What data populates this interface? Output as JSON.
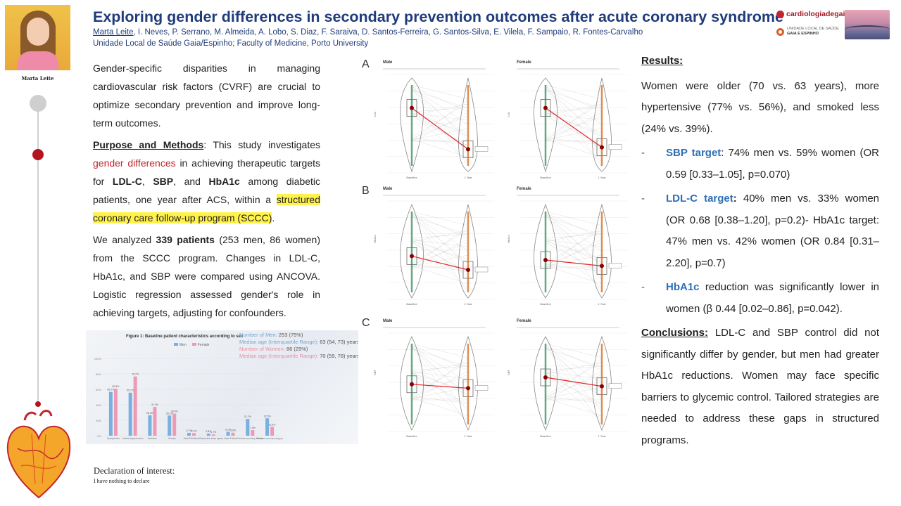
{
  "author_photo": {
    "name_caption": "Marta Leite"
  },
  "header": {
    "title": "Exploring gender differences in secondary prevention outcomes after acute coronary syndrome",
    "first_author": "Marta Leite",
    "coauthors": ", I. Neves, P. Serrano, M. Almeida, A. Lobo, S. Diaz, F. Saraiva, D. Santos-Ferreira, G. Santos-Silva, E. Vilela, F. Sampaio, R. Fontes-Carvalho",
    "affiliation": "Unidade Local de Saúde Gaia/Espinho; Faculty of Medicine, Porto University",
    "logo1": "cardiologiadegaia",
    "logo2_line1": "UNIDADE LOCAL DE SAÚDE",
    "logo2_line2": "GAIA E ESPINHO"
  },
  "intro": {
    "p1": "Gender-specific disparities in managing cardiovascular risk factors (CVRF) are crucial to optimize secondary prevention and improve long-term outcomes.",
    "pm_label": "Purpose and Methods",
    "pm_t1": ": This study investigates ",
    "pm_red": "gender differences",
    "pm_t2": " in achieving therapeutic targets for ",
    "ldl": "LDL-C",
    "sep1": ", ",
    "sbp": "SBP",
    "sep2": ", and ",
    "hba1c": "HbA1c",
    "pm_t3": " among diabetic patients, one year after ACS, within a ",
    "pm_hl": "structured coronary care follow-up program (SCCC)",
    "pm_end": ".",
    "an_t1": "We analyzed ",
    "an_bold": "339 patients",
    "an_t2": " (253 men, 86 women) from the SCCC program. Changes in LDL-C, HbA1c, and SBP were compared using ANCOVA. Logistic regression assessed gender's role in achieving targets, adjusting for confounders."
  },
  "figure1": {
    "title": "Figure 1: Baseline patient characteristics according to sex",
    "legend_men": "Men",
    "legend_women": "Female",
    "men_label": "Number of Men:",
    "men_value": " 253 (75%)",
    "men_age_label": "Median age (Interquartile Range):",
    "men_age_value": " 63 (54, 73) years",
    "women_label": "Number of Women:",
    "women_value": " 86 (25%)",
    "women_age_label": "Median age (Interquartile Range):",
    "women_age_value": " 70 (59, 78) years"
  },
  "chart_data": [
    {
      "type": "bar",
      "title": "Figure 1: Baseline patient characteristics according to sex",
      "categories": [
        "Dyslipidemia (p<0.01)",
        "Arterial Hypertension (p<0.001)",
        "Diabetes (p=0.17)",
        "Obesity (p=0.8)",
        "Atrial Fibrillation (p=0.16)",
        "Obstructive sleep apnea (p=0.06)",
        "Heart Failure (p=0.16)",
        "Previous coronary disease (p=0.2)",
        "Previous coronary surgery (p=0.06)"
      ],
      "series": [
        {
          "name": "Men",
          "values": [
            56.7,
            55.7,
            26.5,
            26.1,
            3.7,
            2.8,
            5.1,
            21.7,
            22.5
          ]
        },
        {
          "name": "Female",
          "values": [
            60.8,
            76.7,
            37.2,
            28.5,
            3.4,
            1.7,
            3.9,
            7.3,
            11.5
          ]
        }
      ],
      "ylim": [
        0,
        100
      ],
      "ylabel": "%",
      "colors": {
        "men": "#7ab0e0",
        "female": "#ef9ab4"
      }
    },
    {
      "type": "violin",
      "title": "Paired change baseline vs 1 year by sex",
      "panels": [
        {
          "panel": "A",
          "metric": "LDL",
          "sex": "Male",
          "baseline_median": 0.66,
          "followup_median": 0.24
        },
        {
          "panel": "A",
          "metric": "LDL",
          "sex": "Female",
          "baseline_median": 0.66,
          "followup_median": 0.26
        },
        {
          "panel": "B",
          "metric": "HbA1c",
          "sex": "Male",
          "baseline_median": 0.44,
          "followup_median": 0.3
        },
        {
          "panel": "B",
          "metric": "HbA1c",
          "sex": "Female",
          "baseline_median": 0.4,
          "followup_median": 0.34
        },
        {
          "panel": "C",
          "metric": "SBP",
          "sex": "Male",
          "baseline_median": 0.48,
          "followup_median": 0.44
        },
        {
          "panel": "C",
          "metric": "SBP",
          "sex": "Female",
          "baseline_median": 0.55,
          "followup_median": 0.46
        }
      ],
      "x_labels": [
        "Baseline",
        "1 Year"
      ],
      "colors": {
        "baseline": "#2e8b57",
        "followup": "#d46a1c",
        "mean_line": "#e32626"
      }
    }
  ],
  "panel_labels": {
    "a": "A",
    "b": "B",
    "c": "C",
    "male": "Male",
    "female": "Female",
    "ylab_a": "LDL",
    "ylab_b": "HbA1c",
    "ylab_c": "SBP"
  },
  "results": {
    "header": "Results:",
    "summary": "Women were older (70 vs. 63 years), more hypertensive (77% vs. 56%), and smoked less (24% vs. 39%).",
    "dash": "-",
    "sbp_label": "SBP target",
    "sbp_text": ": 74% men vs. 59% women (OR 0.59 [0.33–1.05], p=0.070)",
    "ldl_label": "LDL-C target",
    "ldl_colon": ":",
    "ldl_text": " 40% men vs. 33% women (OR 0.68 [0.38–1.20], p=0.2)- HbA1c target: 47% men vs. 42% women (OR 0.84 [0.31–2.20], p=0.7)",
    "hba_label": "HbA1c",
    "hba_text": " reduction was significantly lower in women (β 0.44 [0.02–0.86], p=0.042).",
    "concl_label": "Conclusions:",
    "concl_text": " LDL-C and SBP control did not significantly differ by gender, but men had greater HbA1c reductions. Women may face specific barriers to glycemic control. Tailored strategies are needed to address these gaps in structured programs."
  },
  "declaration": {
    "heading": "Declaration of interest:",
    "text": "I have nothing to declare"
  }
}
